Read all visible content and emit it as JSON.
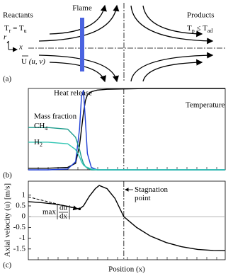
{
  "diagram": {
    "flame": "Flame",
    "reactants": "Reactants",
    "reactants_condition": [
      "T",
      "r",
      " = T",
      "u"
    ],
    "products": "Products",
    "products_condition": [
      "T",
      "p",
      " ≤ T",
      "ad"
    ],
    "axis_r": "r",
    "axis_x": "x",
    "velocity": [
      "U",
      " (u, v)"
    ],
    "panel_label": "(a)"
  },
  "chart_data": [
    {
      "type": "line",
      "panel_label": "(b)",
      "x": [
        0,
        10,
        20,
        24,
        26,
        27,
        28,
        29,
        30,
        32,
        35,
        40,
        60,
        100
      ],
      "xlim": [
        0,
        100
      ],
      "ylim": [
        0,
        1
      ],
      "series": [
        {
          "name": "Temperature",
          "color": "#000000",
          "values": [
            0.02,
            0.02,
            0.03,
            0.08,
            0.3,
            0.5,
            0.7,
            0.85,
            0.92,
            0.96,
            0.98,
            0.99,
            1.0,
            1.0
          ]
        },
        {
          "name": "Heat release",
          "color": "#1f3fd6",
          "values": [
            0,
            0,
            0.01,
            0.1,
            0.5,
            0.9,
            0.98,
            0.6,
            0.2,
            0.03,
            0,
            0,
            0,
            0
          ]
        },
        {
          "name": [
            "CH",
            "4"
          ],
          "color": "#1a9a8a",
          "values": [
            0.52,
            0.52,
            0.5,
            0.4,
            0.25,
            0.15,
            0.08,
            0.04,
            0.02,
            0,
            0,
            0,
            0,
            0
          ]
        },
        {
          "name": [
            "H",
            "2"
          ],
          "color": "#33c6b4",
          "values": [
            0.34,
            0.34,
            0.32,
            0.25,
            0.16,
            0.1,
            0.06,
            0.04,
            0.03,
            0.01,
            0,
            0,
            0,
            0
          ]
        }
      ],
      "group_label": "Mass fraction"
    },
    {
      "type": "line",
      "panel_label": "(c)",
      "x_label": "Position (x)",
      "y_label": "Axial velocity (u) [m/s]",
      "x": [
        0,
        7,
        14,
        20,
        24,
        26,
        28,
        31,
        34,
        36,
        40,
        44,
        48.5,
        55,
        62,
        70,
        78,
        86,
        94,
        100
      ],
      "xlim": [
        0,
        100
      ],
      "ylim": [
        -2,
        1.65
      ],
      "yticks": [
        -1.5,
        -1,
        -0.5,
        0,
        0.5,
        1
      ],
      "series": [
        {
          "color": "#000000",
          "values": [
            0.7,
            0.65,
            0.58,
            0.48,
            0.4,
            0.36,
            0.5,
            0.95,
            1.3,
            1.45,
            1.3,
            0.85,
            0,
            -0.5,
            -0.9,
            -1.2,
            -1.4,
            -1.52,
            -1.57,
            -1.58
          ]
        }
      ],
      "annotations": {
        "max_gradient": {
          "text": [
            "max",
            "du",
            "dx"
          ],
          "x": 26,
          "y": 0.36
        },
        "stagnation": {
          "text": [
            "Stagnation",
            "point"
          ],
          "x": 48.5
        }
      }
    }
  ]
}
